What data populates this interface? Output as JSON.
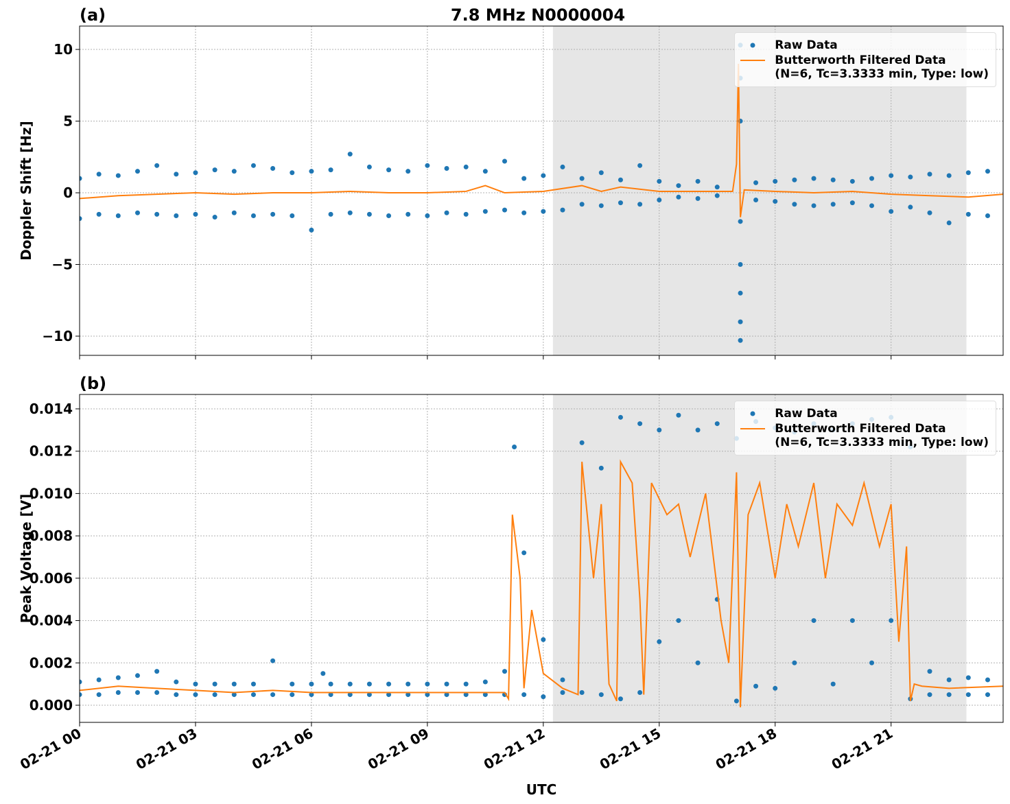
{
  "chart_data": [
    {
      "type": "line",
      "title": "7.8 MHz N0000004",
      "panel_label": "(a)",
      "ylabel": "Doppler Shift [Hz]",
      "xlim": [
        0,
        23.9
      ],
      "ylim": [
        -11.34,
        11.63
      ],
      "yticks": [
        {
          "value": -10,
          "label": "−10"
        },
        {
          "value": -5,
          "label": "−5"
        },
        0,
        5,
        10
      ],
      "grid": true,
      "legend": "upper right",
      "shaded_span": [
        12.25,
        22.95
      ],
      "series": [
        {
          "name": "Raw Data",
          "color": "#1f77b4",
          "style": "markers",
          "x": [
            0,
            0,
            0.5,
            0.5,
            1,
            1,
            1.5,
            1.5,
            2,
            2,
            2.5,
            2.5,
            3,
            3,
            3.5,
            3.5,
            4,
            4,
            4.5,
            4.5,
            5,
            5,
            5.5,
            5.5,
            6,
            6,
            6.5,
            6.5,
            7,
            7,
            7.5,
            7.5,
            8,
            8,
            8.5,
            8.5,
            9,
            9,
            9.5,
            9.5,
            10,
            10,
            10.5,
            10.5,
            11,
            11,
            11.5,
            11.5,
            12,
            12,
            12.5,
            12.5,
            13,
            13,
            13.5,
            13.5,
            14,
            14,
            14.5,
            14.5,
            15,
            15,
            15.5,
            15.5,
            16,
            16,
            16.5,
            16.5,
            17.1,
            17.1,
            17.5,
            17.5,
            18,
            18,
            18.5,
            18.5,
            19,
            19,
            19.5,
            19.5,
            20,
            20,
            20.5,
            20.5,
            21,
            21,
            21.5,
            21.5,
            22,
            22,
            22.5,
            22.5,
            23,
            23,
            23.5,
            23.5,
            17.1,
            17.1,
            17.1,
            17.1,
            17.1,
            17.1
          ],
          "values": [
            1.0,
            -1.8,
            1.3,
            -1.5,
            1.2,
            -1.6,
            1.5,
            -1.4,
            1.9,
            -1.5,
            1.3,
            -1.6,
            1.4,
            -1.5,
            1.6,
            -1.7,
            1.5,
            -1.4,
            1.9,
            -1.6,
            1.7,
            -1.5,
            1.4,
            -1.6,
            1.5,
            -2.6,
            1.6,
            -1.5,
            2.7,
            -1.4,
            1.8,
            -1.5,
            1.6,
            -1.6,
            1.5,
            -1.5,
            1.9,
            -1.6,
            1.7,
            -1.4,
            1.8,
            -1.5,
            1.5,
            -1.3,
            2.2,
            -1.2,
            1.0,
            -1.4,
            1.2,
            -1.3,
            1.8,
            -1.2,
            1.0,
            -0.8,
            1.4,
            -0.9,
            0.9,
            -0.7,
            1.9,
            -0.8,
            0.8,
            -0.5,
            0.5,
            -0.3,
            0.8,
            -0.4,
            0.4,
            -0.2,
            10.3,
            -10.3,
            0.7,
            -0.5,
            0.8,
            -0.6,
            0.9,
            -0.8,
            1.0,
            -0.9,
            0.9,
            -0.8,
            0.8,
            -0.7,
            1.0,
            -0.9,
            1.2,
            -1.3,
            1.1,
            -1.0,
            1.3,
            -1.4,
            1.2,
            -2.1,
            1.4,
            -1.5,
            1.5,
            -1.6,
            8,
            5,
            -2,
            -5,
            -7,
            -9
          ]
        },
        {
          "name": "Butterworth Filtered Data\n(N=6, Tc=3.3333 min, Type: low)",
          "color": "#ff7f0e",
          "style": "line",
          "x": [
            0,
            1,
            2,
            3,
            4,
            5,
            6,
            7,
            8,
            9,
            10,
            10.5,
            11,
            12,
            13,
            13.5,
            14,
            15,
            16,
            16.9,
            17.0,
            17.05,
            17.1,
            17.2,
            18,
            19,
            20,
            21,
            22,
            23,
            23.9
          ],
          "values": [
            -0.4,
            -0.2,
            -0.1,
            0,
            -0.1,
            0,
            0,
            0.1,
            0,
            0,
            0.1,
            0.5,
            0,
            0.1,
            0.5,
            0.1,
            0.4,
            0.1,
            0.1,
            0.1,
            2,
            9,
            -1.7,
            0.2,
            0.1,
            0,
            0.1,
            -0.1,
            -0.2,
            -0.3,
            -0.1
          ]
        }
      ]
    },
    {
      "type": "line",
      "panel_label": "(b)",
      "ylabel": "Peak Voltage [V]",
      "xlabel": "UTC",
      "xlim": [
        0,
        23.9
      ],
      "ylim": [
        -0.00081,
        0.01468
      ],
      "xticks": [
        {
          "value": 0,
          "label": "02-21 00"
        },
        {
          "value": 3,
          "label": "02-21 03"
        },
        {
          "value": 6,
          "label": "02-21 06"
        },
        {
          "value": 9,
          "label": "02-21 09"
        },
        {
          "value": 12,
          "label": "02-21 12"
        },
        {
          "value": 15,
          "label": "02-21 15"
        },
        {
          "value": 18,
          "label": "02-21 18"
        },
        {
          "value": 21,
          "label": "02-21 21"
        }
      ],
      "yticks": [
        {
          "value": 0,
          "label": "0.000"
        },
        {
          "value": 0.002,
          "label": "0.002"
        },
        {
          "value": 0.004,
          "label": "0.004"
        },
        {
          "value": 0.006,
          "label": "0.006"
        },
        {
          "value": 0.008,
          "label": "0.008"
        },
        {
          "value": 0.01,
          "label": "0.010"
        },
        {
          "value": 0.012,
          "label": "0.012"
        },
        {
          "value": 0.014,
          "label": "0.014"
        }
      ],
      "grid": true,
      "legend": "upper right",
      "shaded_span": [
        12.25,
        22.95
      ],
      "series": [
        {
          "name": "Raw Data",
          "color": "#1f77b4",
          "style": "markers",
          "x": [
            0,
            0,
            0.5,
            0.5,
            1,
            1,
            1.5,
            1.5,
            2,
            2,
            2.5,
            2.5,
            3,
            3,
            3.5,
            3.5,
            4,
            4,
            4.5,
            4.5,
            5,
            5,
            5.5,
            5.5,
            6,
            6,
            6.5,
            6.5,
            7,
            7,
            7.5,
            7.5,
            8,
            8,
            8.5,
            8.5,
            9,
            9,
            9.5,
            9.5,
            10,
            10,
            10.5,
            10.5,
            11,
            11,
            11.5,
            11.5,
            12,
            12,
            12.5,
            12.5,
            13,
            13,
            13.5,
            13.5,
            14,
            14,
            14.5,
            14.5,
            15,
            15,
            15.5,
            15.5,
            16,
            16,
            16.5,
            16.5,
            17,
            17,
            17.5,
            17.5,
            18,
            18,
            18.5,
            18.5,
            19,
            19,
            19.5,
            19.5,
            20,
            20,
            20.5,
            20.5,
            21,
            21,
            21.5,
            21.5,
            22,
            22,
            22.5,
            22.5,
            23,
            23,
            23.5,
            23.5,
            11.25,
            6.3
          ],
          "values": [
            0.0011,
            0.0005,
            0.0012,
            0.0005,
            0.0013,
            0.0006,
            0.0014,
            0.0006,
            0.0016,
            0.0006,
            0.0011,
            0.0005,
            0.001,
            0.0005,
            0.001,
            0.0005,
            0.001,
            0.0005,
            0.001,
            0.0005,
            0.0021,
            0.0005,
            0.001,
            0.0005,
            0.001,
            0.0005,
            0.001,
            0.0005,
            0.001,
            0.0005,
            0.001,
            0.0005,
            0.001,
            0.0005,
            0.001,
            0.0005,
            0.001,
            0.0005,
            0.001,
            0.0005,
            0.001,
            0.0005,
            0.0011,
            0.0005,
            0.0016,
            0.0005,
            0.0072,
            0.0005,
            0.0031,
            0.0004,
            0.0012,
            0.0006,
            0.0124,
            0.0006,
            0.0112,
            0.0005,
            0.0136,
            0.0003,
            0.0133,
            0.0006,
            0.013,
            0.003,
            0.0137,
            0.004,
            0.013,
            0.002,
            0.0133,
            0.005,
            0.0126,
            0.0002,
            0.0134,
            0.0009,
            0.0131,
            0.0008,
            0.0129,
            0.002,
            0.0133,
            0.004,
            0.013,
            0.001,
            0.0133,
            0.004,
            0.0135,
            0.002,
            0.0136,
            0.004,
            0.0122,
            0.0003,
            0.0016,
            0.0005,
            0.0012,
            0.0005,
            0.0013,
            0.0005,
            0.0012,
            0.0005,
            0.0122,
            0.0015
          ]
        },
        {
          "name": "Butterworth Filtered Data\n(N=6, Tc=3.3333 min, Type: low)",
          "color": "#ff7f0e",
          "style": "line",
          "x": [
            0,
            1,
            2,
            3,
            4,
            5,
            6,
            7,
            8,
            9,
            10,
            11,
            11.1,
            11.2,
            11.4,
            11.5,
            11.7,
            12,
            12.5,
            12.9,
            13.0,
            13.3,
            13.5,
            13.7,
            13.9,
            14,
            14.3,
            14.5,
            14.6,
            14.8,
            15.2,
            15.5,
            15.8,
            16.2,
            16.6,
            16.8,
            17.0,
            17.1,
            17.3,
            17.6,
            18,
            18.3,
            18.6,
            19,
            19.3,
            19.6,
            20,
            20.3,
            20.7,
            21,
            21.2,
            21.4,
            21.5,
            21.6,
            21.8,
            22.5,
            23.9
          ],
          "values": [
            0.0007,
            0.0009,
            0.0008,
            0.0007,
            0.0006,
            0.0007,
            0.0006,
            0.0006,
            0.0006,
            0.0006,
            0.0006,
            0.0006,
            0.0003,
            0.009,
            0.006,
            0.0008,
            0.0045,
            0.0015,
            0.0008,
            0.0005,
            0.0115,
            0.006,
            0.0095,
            0.001,
            0.0002,
            0.0115,
            0.0105,
            0.005,
            0.0005,
            0.0105,
            0.009,
            0.0095,
            0.007,
            0.01,
            0.004,
            0.002,
            0.011,
            -0.0001,
            0.009,
            0.0105,
            0.006,
            0.0095,
            0.0075,
            0.0105,
            0.006,
            0.0095,
            0.0085,
            0.0105,
            0.0075,
            0.0095,
            0.003,
            0.0075,
            0.0002,
            0.001,
            0.0009,
            0.0008,
            0.0009
          ]
        }
      ]
    }
  ]
}
